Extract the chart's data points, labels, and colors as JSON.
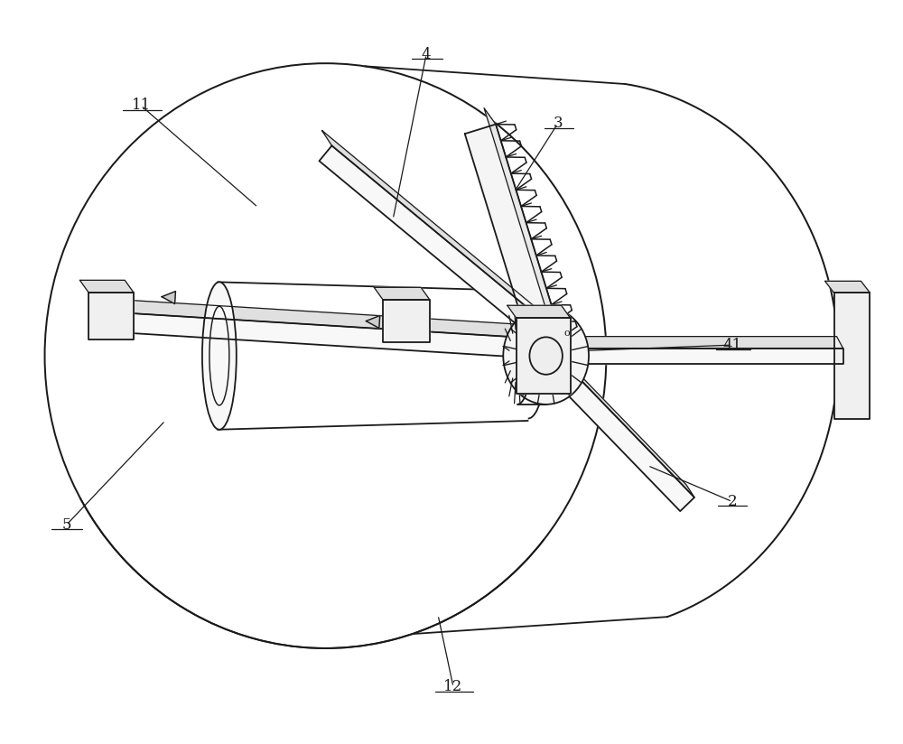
{
  "bg_color": "#ffffff",
  "line_color": "#1a1a1a",
  "line_width": 1.3,
  "fig_width": 10.0,
  "fig_height": 8.24
}
